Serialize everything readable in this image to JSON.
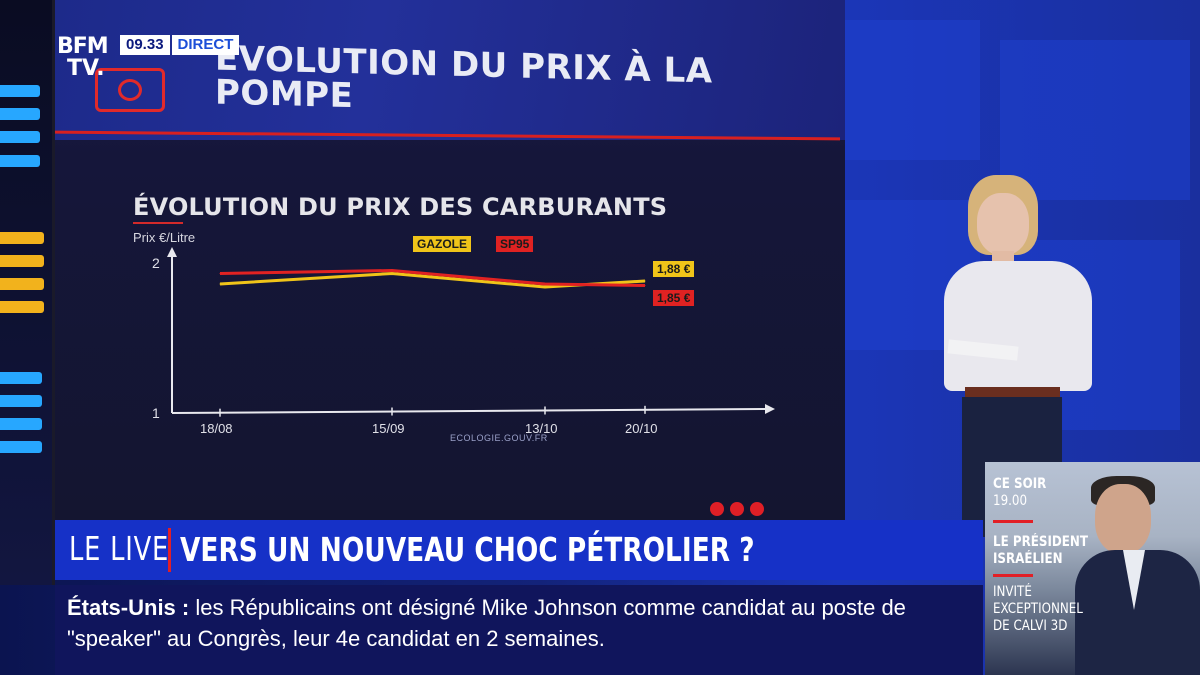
{
  "channel": {
    "logo_line1": "BFM",
    "logo_line2": "TV.",
    "time": "09.33",
    "status": "DIRECT"
  },
  "wall": {
    "title_line1": "ÉVOLUTION DU PRIX À LA",
    "title_line2": "POMPE"
  },
  "chart_data": {
    "type": "line",
    "title": "ÉVOLUTION DU PRIX DES CARBURANTS",
    "ylabel": "Prix €/Litre",
    "xlabel": "",
    "ylim": [
      1,
      2
    ],
    "yticks": [
      "2",
      "1"
    ],
    "categories": [
      "18/08",
      "15/09",
      "13/10",
      "20/10"
    ],
    "series": [
      {
        "name": "GAZOLE",
        "color": "#f0c419",
        "values": [
          1.86,
          1.93,
          1.84,
          1.88
        ],
        "end_label": "1,88 €"
      },
      {
        "name": "SP95",
        "color": "#e02222",
        "values": [
          1.93,
          1.95,
          1.86,
          1.85
        ],
        "end_label": "1,85 €"
      }
    ],
    "source": "ECOLOGIE.GOUV.FR",
    "grid": false,
    "legend_position": "top"
  },
  "lower_third": {
    "tag": "LE LIVE",
    "headline": "VERS UN NOUVEAU CHOC PÉTROLIER ?"
  },
  "ticker": {
    "topic": "États-Unis :",
    "text": "les Républicains ont désigné Mike Johnson comme candidat au poste de \"speaker\" au Congrès, leur 4e candidat en 2 semaines."
  },
  "promo": {
    "label": "CE SOIR",
    "time": "19.00",
    "headline_line1": "LE PRÉSIDENT",
    "headline_line2": "ISRAÉLIEN",
    "sub_line1": "INVITÉ",
    "sub_line2": "EXCEPTIONNEL",
    "sub_line3": "DE CALVI 3D"
  },
  "colors": {
    "brand_blue": "#1631c7",
    "alert_red": "#e21f26",
    "ticker_bg": "#10155c"
  }
}
